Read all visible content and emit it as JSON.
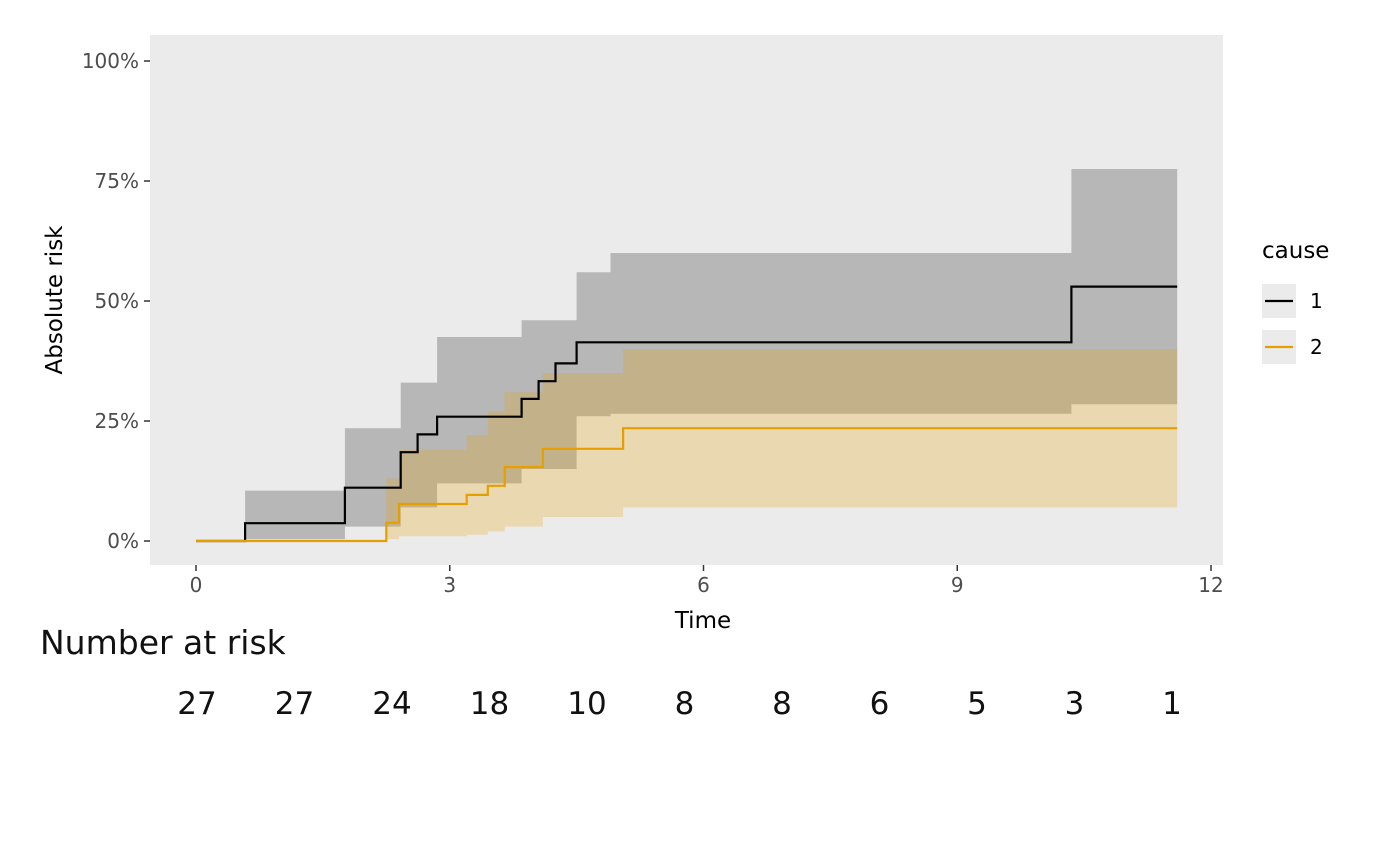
{
  "figure": {
    "background": "#ffffff",
    "panel_background": "#ebebeb",
    "tick_color": "#333333",
    "tick_label_color": "#4d4d4d"
  },
  "chart_data": {
    "type": "line",
    "subtype": "step-cumulative-incidence",
    "title": "",
    "xlabel": "Time",
    "ylabel": "Absolute risk",
    "xlim": [
      0,
      12
    ],
    "ylim": [
      0,
      1
    ],
    "x_tick_values": [
      0,
      3,
      6,
      9,
      12
    ],
    "x_ticks": [
      "0",
      "3",
      "6",
      "9",
      "12"
    ],
    "y_tick_values": [
      0,
      0.25,
      0.5,
      0.75,
      1
    ],
    "y_tick_labels": [
      "0%",
      "25%",
      "50%",
      "75%",
      "100%"
    ],
    "grid": false,
    "legend": {
      "title": "cause",
      "position": "right",
      "entries": [
        {
          "label": "1",
          "color": "#000000"
        },
        {
          "label": "2",
          "color": "#E69F00"
        }
      ]
    },
    "series": [
      {
        "name": "1",
        "color": "#000000",
        "band_opacity": 0.22,
        "x": [
          0,
          0.58,
          1.76,
          2.42,
          2.62,
          2.85,
          3.85,
          4.05,
          4.25,
          4.5,
          10.35,
          11.6
        ],
        "y": [
          0,
          0.037,
          0.111,
          0.185,
          0.222,
          0.259,
          0.296,
          0.333,
          0.37,
          0.414,
          0.53,
          0.53
        ],
        "band": {
          "x": [
            0.58,
            1.76,
            2.42,
            2.85,
            3.85,
            4.5,
            4.9,
            10.35,
            11.6
          ],
          "upper": [
            0.105,
            0.235,
            0.33,
            0.425,
            0.46,
            0.56,
            0.6,
            0.775,
            0.775
          ],
          "lower": [
            0.004,
            0.03,
            0.07,
            0.12,
            0.15,
            0.26,
            0.265,
            0.285,
            0.285
          ]
        }
      },
      {
        "name": "2",
        "color": "#E69F00",
        "band_opacity": 0.25,
        "x": [
          0,
          2.25,
          2.4,
          3.2,
          3.45,
          3.65,
          4.1,
          5.05,
          11.6
        ],
        "y": [
          0,
          0.038,
          0.077,
          0.096,
          0.115,
          0.154,
          0.192,
          0.235,
          0.235
        ],
        "band": {
          "x": [
            2.25,
            2.4,
            3.2,
            3.45,
            3.65,
            4.1,
            5.05,
            11.6
          ],
          "upper": [
            0.13,
            0.19,
            0.22,
            0.27,
            0.31,
            0.35,
            0.4,
            0.4
          ],
          "lower": [
            0.004,
            0.01,
            0.013,
            0.02,
            0.03,
            0.05,
            0.07,
            0.07
          ]
        }
      }
    ]
  },
  "risk_table": {
    "title": "Number at risk",
    "values": [
      "27",
      "27",
      "24",
      "18",
      "10",
      "8",
      "8",
      "6",
      "5",
      "3",
      "1"
    ]
  }
}
